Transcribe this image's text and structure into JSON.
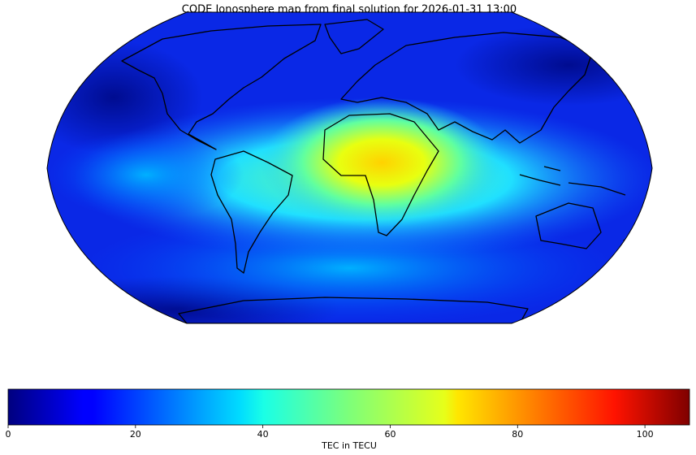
{
  "title": "CODE Ionosphere map from final solution for 2026-01-31 13:00",
  "colorbar": {
    "label": "TEC in TECU",
    "colormap": "jet",
    "lim": [
      0,
      107
    ],
    "ticks": [
      0,
      20,
      40,
      60,
      80,
      100
    ]
  }
}
